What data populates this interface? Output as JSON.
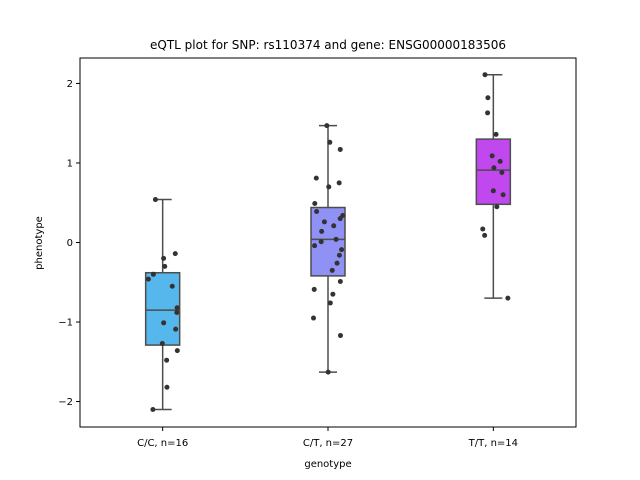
{
  "chart_data": {
    "type": "box",
    "title": "eQTL plot for SNP: rs110374 and gene: ENSG00000183506",
    "xlabel": "genotype",
    "ylabel": "phenotype",
    "ylim": [
      -2.32,
      2.32
    ],
    "yticks": [
      -2,
      -1,
      0,
      1,
      2
    ],
    "ytick_labels": [
      "−2",
      "−1",
      "0",
      "1",
      "2"
    ],
    "grid": false,
    "categories": [
      "C/C, n=16",
      "C/T, n=27",
      "T/T, n=14"
    ],
    "boxes": [
      {
        "category": "C/C, n=16",
        "color": "#55b7ec",
        "whisker_low": -2.1,
        "q1": -1.29,
        "median": -0.85,
        "q3": -0.38,
        "whisker_high": 0.54,
        "points": [
          0.54,
          -0.14,
          -0.3,
          -0.4,
          -0.46,
          -0.55,
          -0.82,
          -0.88,
          -1.01,
          -1.09,
          -1.27,
          -1.36,
          -1.48,
          -1.82,
          -2.1,
          -0.2
        ]
      },
      {
        "category": "C/T, n=27",
        "color": "#8f91f5",
        "whisker_low": -1.63,
        "q1": -0.42,
        "median": 0.04,
        "q3": 0.44,
        "whisker_high": 1.47,
        "points": [
          1.47,
          1.26,
          1.17,
          0.81,
          0.75,
          0.7,
          0.49,
          0.39,
          0.34,
          0.3,
          0.26,
          0.21,
          0.14,
          0.04,
          0.01,
          -0.04,
          -0.09,
          -0.16,
          -0.26,
          -0.35,
          -0.49,
          -0.59,
          -0.65,
          -0.76,
          -0.95,
          -1.17,
          -1.63
        ]
      },
      {
        "category": "T/T, n=14",
        "color": "#c147ef",
        "whisker_low": -0.7,
        "q1": 0.48,
        "median": 0.91,
        "q3": 1.3,
        "whisker_high": 2.11,
        "points": [
          2.11,
          1.82,
          1.63,
          1.36,
          1.09,
          1.02,
          0.94,
          0.88,
          0.65,
          0.6,
          0.45,
          0.17,
          0.09,
          -0.7
        ]
      }
    ]
  }
}
